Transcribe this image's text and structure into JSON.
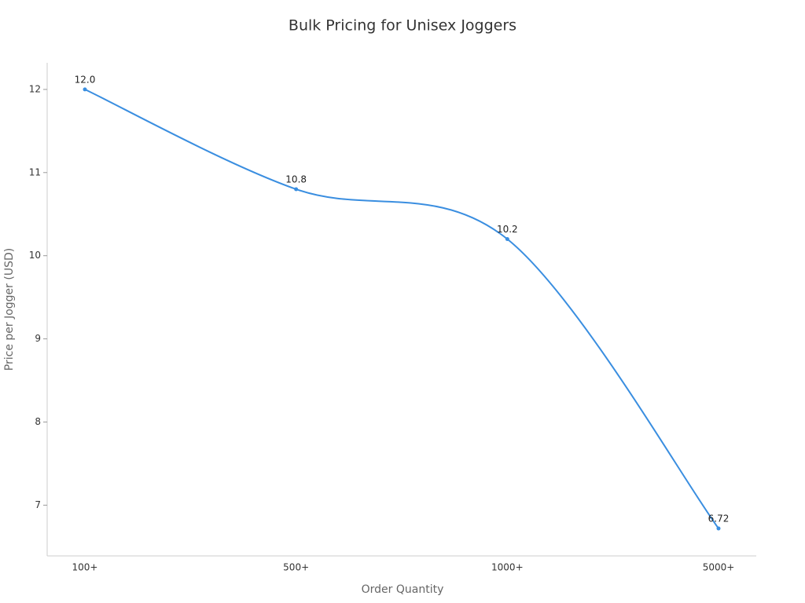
{
  "chart_data": {
    "type": "line",
    "title": "Bulk Pricing for Unisex Joggers",
    "xlabel": "Order Quantity",
    "ylabel": "Price per Jogger (USD)",
    "categories": [
      "100+",
      "500+",
      "1000+",
      "5000+"
    ],
    "values": [
      12.0,
      10.8,
      10.2,
      6.72
    ],
    "value_labels": [
      "12.0",
      "10.8",
      "10.2",
      "6.72"
    ],
    "color": "#3a8ee0",
    "ylim": [
      6.39,
      12.32
    ],
    "yticks": [
      7,
      8,
      9,
      10,
      11,
      12
    ],
    "grid": false
  }
}
